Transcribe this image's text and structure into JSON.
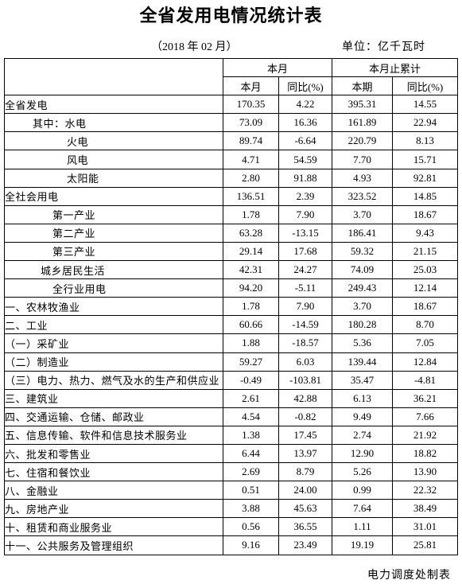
{
  "title": "全省发用电情况统计表",
  "subtitle": {
    "period": "（2018 年 02 月）",
    "unit": "单位：亿千瓦时"
  },
  "table": {
    "header": {
      "group1": "本月",
      "group2": "本月止累计",
      "sub": [
        "本月",
        "同比(%)",
        "本期",
        "同比(%)"
      ]
    },
    "rows": [
      [
        "全省发电",
        "170.35",
        "4.22",
        "395.31",
        "14.55"
      ],
      [
        "其中：水电",
        "73.09",
        "16.36",
        "161.89",
        "22.94"
      ],
      [
        "火电",
        "89.74",
        "-6.64",
        "220.79",
        "8.13"
      ],
      [
        "风电",
        "4.71",
        "54.59",
        "7.70",
        "15.71"
      ],
      [
        "太阳能",
        "2.80",
        "91.88",
        "4.93",
        "92.81"
      ],
      [
        "全社会用电",
        "136.51",
        "2.39",
        "323.52",
        "14.85"
      ],
      [
        "第一产业",
        "1.78",
        "7.90",
        "3.70",
        "18.67"
      ],
      [
        "第二产业",
        "63.28",
        "-13.15",
        "186.41",
        "9.43"
      ],
      [
        "第三产业",
        "29.14",
        "17.68",
        "59.32",
        "21.15"
      ],
      [
        "城乡居民生活",
        "42.31",
        "24.27",
        "74.09",
        "25.03"
      ],
      [
        "全行业用电",
        "94.20",
        "-5.11",
        "249.43",
        "12.14"
      ],
      [
        "一、农林牧渔业",
        "1.78",
        "7.90",
        "3.70",
        "18.67"
      ],
      [
        "二、工业",
        "60.66",
        "-14.59",
        "180.28",
        "8.70"
      ],
      [
        "（一）采矿业",
        "1.88",
        "-18.57",
        "5.36",
        "7.05"
      ],
      [
        "（二）制造业",
        "59.27",
        "6.03",
        "139.44",
        "12.84"
      ],
      [
        "（三）电力、热力、燃气及水的生产和供应业",
        "-0.49",
        "-103.81",
        "35.47",
        "-4.81"
      ],
      [
        "三、建筑业",
        "2.61",
        "42.88",
        "6.13",
        "36.21"
      ],
      [
        "四、交通运输、仓储、邮政业",
        "4.54",
        "-0.82",
        "9.49",
        "7.66"
      ],
      [
        "五、信息传输、软件和信息技术服务业",
        "1.38",
        "17.45",
        "2.74",
        "21.92"
      ],
      [
        "六、批发和零售业",
        "6.44",
        "13.97",
        "12.90",
        "18.82"
      ],
      [
        "七、住宿和餐饮业",
        "2.69",
        "8.79",
        "5.26",
        "13.90"
      ],
      [
        "八、金融业",
        "0.51",
        "24.00",
        "0.99",
        "22.32"
      ],
      [
        "九、房地产业",
        "3.88",
        "45.63",
        "7.64",
        "38.49"
      ],
      [
        "十、租赁和商业服务业",
        "0.56",
        "36.55",
        "1.11",
        "31.01"
      ],
      [
        "十一、公共服务及管理组织",
        "9.16",
        "23.49",
        "19.19",
        "25.81"
      ]
    ]
  },
  "footer": "电力调度处制表"
}
